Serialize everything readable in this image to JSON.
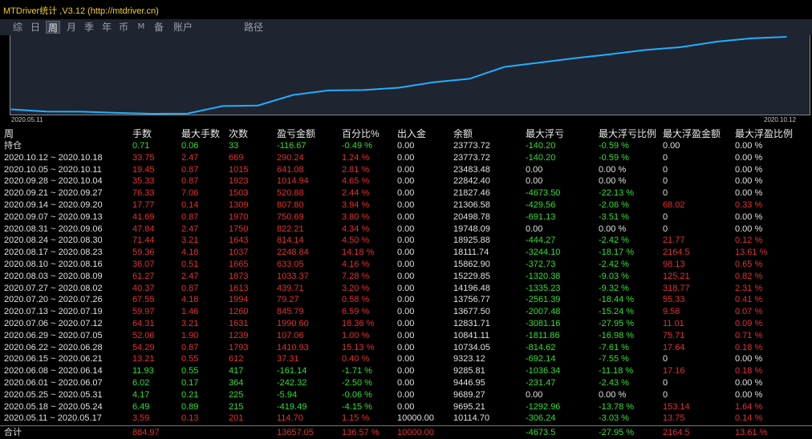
{
  "app": {
    "title": "MTDriver统计 ,V3.12 (http://mtdriver.cn)"
  },
  "tabs": [
    {
      "label": "综",
      "active": false
    },
    {
      "label": "日",
      "active": false
    },
    {
      "label": "周",
      "active": true
    },
    {
      "label": "月",
      "active": false
    },
    {
      "label": "季",
      "active": false
    },
    {
      "label": "年",
      "active": false
    },
    {
      "label": "币",
      "active": false
    },
    {
      "label": "M",
      "active": false
    },
    {
      "label": "备",
      "active": false
    },
    {
      "label": "账户",
      "active": false
    },
    {
      "label": "路径",
      "active": false
    }
  ],
  "chart_data": {
    "type": "line",
    "x_start_label": "2020.05.11",
    "x_end_label": "2020.10.12",
    "x": [
      "2020.05.11",
      "2020.05.18",
      "2020.05.25",
      "2020.06.01",
      "2020.06.08",
      "2020.06.15",
      "2020.06.22",
      "2020.06.29",
      "2020.07.06",
      "2020.07.13",
      "2020.07.20",
      "2020.07.27",
      "2020.08.03",
      "2020.08.10",
      "2020.08.17",
      "2020.08.24",
      "2020.08.31",
      "2020.09.07",
      "2020.09.14",
      "2020.09.21",
      "2020.09.28",
      "2020.10.05",
      "2020.10.12"
    ],
    "values": [
      10114.7,
      9695.21,
      9689.27,
      9446.95,
      9285.81,
      9323.12,
      10734.05,
      10841.11,
      12831.71,
      13677.5,
      13756.77,
      14196.48,
      15229.85,
      15862.9,
      18111.74,
      18925.88,
      19748.09,
      20498.78,
      21306.58,
      21827.46,
      22842.4,
      23483.48,
      23773.72
    ],
    "color": "#20b0ff",
    "grid": false
  },
  "table": {
    "headers": [
      "周",
      "手数",
      "最大手数",
      "次数",
      "盈亏金额",
      "百分比%",
      "出入金",
      "余额",
      "最大浮亏",
      "最大浮亏比例",
      "最大浮盈金额",
      "最大浮盈比例"
    ],
    "rows": [
      {
        "color": "green",
        "cells": [
          "持仓",
          "0.71",
          "0.06",
          "33",
          "-116.67",
          "-0.49 %",
          "0.00",
          "23773.72",
          "-140.20",
          "-0.59 %",
          "0.00",
          "0.00 %"
        ]
      },
      {
        "color": "red",
        "cells": [
          "2020.10.12 ~ 2020.10.18",
          "33.75",
          "2.47",
          "669",
          "290.24",
          "1.24 %",
          "0.00",
          "23773.72",
          "-140.20",
          "-0.59 %",
          "0",
          "0.00 %"
        ]
      },
      {
        "color": "red",
        "cells": [
          "2020.10.05 ~ 2020.10.11",
          "19.45",
          "0.87",
          "1015",
          "641.08",
          "2.81 %",
          "0.00",
          "23483.48",
          "0.00",
          "0.00 %",
          "0",
          "0.00 %"
        ]
      },
      {
        "color": "red",
        "cells": [
          "2020.09.28 ~ 2020.10.04",
          "35.33",
          "0.87",
          "1923",
          "1014.94",
          "4.65 %",
          "0.00",
          "22842.40",
          "0.00",
          "0.00 %",
          "0",
          "0.00 %"
        ]
      },
      {
        "color": "red",
        "cells": [
          "2020.09.21 ~ 2020.09.27",
          "76.33",
          "7.06",
          "1503",
          "520.88",
          "2.44 %",
          "0.00",
          "21827.46",
          "-4673.50",
          "-22.13 %",
          "0",
          "0.00 %"
        ]
      },
      {
        "color": "red",
        "cells": [
          "2020.09.14 ~ 2020.09.20",
          "17.77",
          "0.14",
          "1309",
          "807.80",
          "3.94 %",
          "0.00",
          "21306.58",
          "-429.56",
          "-2.06 %",
          "68.02",
          "0.33 %"
        ]
      },
      {
        "color": "red",
        "cells": [
          "2020.09.07 ~ 2020.09.13",
          "41.69",
          "0.87",
          "1970",
          "750.69",
          "3.80 %",
          "0.00",
          "20498.78",
          "-691.13",
          "-3.51 %",
          "0",
          "0.00 %"
        ]
      },
      {
        "color": "red",
        "cells": [
          "2020.08.31 ~ 2020.09.06",
          "47.84",
          "2.47",
          "1750",
          "822.21",
          "4.34 %",
          "0.00",
          "19748.09",
          "0.00",
          "0.00 %",
          "0",
          "0.00 %"
        ]
      },
      {
        "color": "red",
        "cells": [
          "2020.08.24 ~ 2020.08.30",
          "71.44",
          "3.21",
          "1643",
          "814.14",
          "4.50 %",
          "0.00",
          "18925.88",
          "-444.27",
          "-2.42 %",
          "21.77",
          "0.12 %"
        ]
      },
      {
        "color": "red",
        "cells": [
          "2020.08.17 ~ 2020.08.23",
          "59.36",
          "4.18",
          "1037",
          "2248.84",
          "14.18 %",
          "0.00",
          "18111.74",
          "-3244.10",
          "-18.17 %",
          "2164.5",
          "13.61 %"
        ]
      },
      {
        "color": "red",
        "cells": [
          "2020.08.10 ~ 2020.08.16",
          "36.07",
          "0.51",
          "1665",
          "633.05",
          "4.16 %",
          "0.00",
          "15862.90",
          "-372.73",
          "-2.42 %",
          "98.13",
          "0.65 %"
        ]
      },
      {
        "color": "red",
        "cells": [
          "2020.08.03 ~ 2020.08.09",
          "61.27",
          "2.47",
          "1873",
          "1033.37",
          "7.28 %",
          "0.00",
          "15229.85",
          "-1320.38",
          "-9.03 %",
          "125.21",
          "0.82 %"
        ]
      },
      {
        "color": "red",
        "cells": [
          "2020.07.27 ~ 2020.08.02",
          "40.37",
          "0.87",
          "1613",
          "439.71",
          "3.20 %",
          "0.00",
          "14196.48",
          "-1335.23",
          "-9.32 %",
          "318.77",
          "2.31 %"
        ]
      },
      {
        "color": "red",
        "cells": [
          "2020.07.20 ~ 2020.07.26",
          "67.55",
          "4.18",
          "1994",
          "79.27",
          "0.58 %",
          "0.00",
          "13756.77",
          "-2561.39",
          "-18.44 %",
          "55.33",
          "0.41 %"
        ]
      },
      {
        "color": "red",
        "cells": [
          "2020.07.13 ~ 2020.07.19",
          "59.97",
          "1.46",
          "1260",
          "845.79",
          "6.59 %",
          "0.00",
          "13677.50",
          "-2007.48",
          "-15.24 %",
          "9.58",
          "0.07 %"
        ]
      },
      {
        "color": "red",
        "cells": [
          "2020.07.06 ~ 2020.07.12",
          "64.31",
          "3.21",
          "1631",
          "1990.60",
          "18.36 %",
          "0.00",
          "12831.71",
          "-3081.16",
          "-27.95 %",
          "11.01",
          "0.09 %"
        ]
      },
      {
        "color": "red",
        "cells": [
          "2020.06.29 ~ 2020.07.05",
          "52.06",
          "1.90",
          "1239",
          "107.06",
          "1.00 %",
          "0.00",
          "10841.11",
          "-1811.86",
          "-16.98 %",
          "75.71",
          "0.71 %"
        ]
      },
      {
        "color": "red",
        "cells": [
          "2020.06.22 ~ 2020.06.28",
          "54.29",
          "0.87",
          "1793",
          "1410.93",
          "15.13 %",
          "0.00",
          "10734.05",
          "-814.62",
          "-7.61 %",
          "17.64",
          "0.18 %"
        ]
      },
      {
        "color": "red",
        "cells": [
          "2020.06.15 ~ 2020.06.21",
          "13.21",
          "0.55",
          "612",
          "37.31",
          "0.40 %",
          "0.00",
          "9323.12",
          "-692.14",
          "-7.55 %",
          "0",
          "0.00 %"
        ]
      },
      {
        "color": "green",
        "cells": [
          "2020.06.08 ~ 2020.06.14",
          "11.93",
          "0.55",
          "417",
          "-161.14",
          "-1.71 %",
          "0.00",
          "9285.81",
          "-1036.34",
          "-11.18 %",
          "17.16",
          "0.18 %"
        ]
      },
      {
        "color": "green",
        "cells": [
          "2020.06.01 ~ 2020.06.07",
          "6.02",
          "0.17",
          "364",
          "-242.32",
          "-2.50 %",
          "0.00",
          "9446.95",
          "-231.47",
          "-2.43 %",
          "0",
          "0.00 %"
        ]
      },
      {
        "color": "green",
        "cells": [
          "2020.05.25 ~ 2020.05.31",
          "4.17",
          "0.21",
          "225",
          "-5.94",
          "-0.06 %",
          "0.00",
          "9689.27",
          "0.00",
          "0.00 %",
          "0",
          "0.00 %"
        ]
      },
      {
        "color": "green",
        "cells": [
          "2020.05.18 ~ 2020.05.24",
          "6.49",
          "0.89",
          "215",
          "-419.49",
          "-4.15 %",
          "0.00",
          "9695.21",
          "-1292.96",
          "-13.78 %",
          "153.14",
          "1.64 %"
        ]
      },
      {
        "color": "red",
        "cells": [
          "2020.05.11 ~ 2020.05.17",
          "3.59",
          "0.13",
          "201",
          "114.70",
          "1.15 %",
          "10000.00",
          "10114.70",
          "-306.24",
          "-3.03 %",
          "13.75",
          "0.14 %"
        ]
      }
    ],
    "total": {
      "cells": [
        "合计",
        "884.97",
        "",
        "",
        "13657.05",
        "136.57 %",
        "10000.00",
        "",
        "-4673.5",
        "-27.95 %",
        "2164.5",
        "13.61 %"
      ]
    }
  }
}
